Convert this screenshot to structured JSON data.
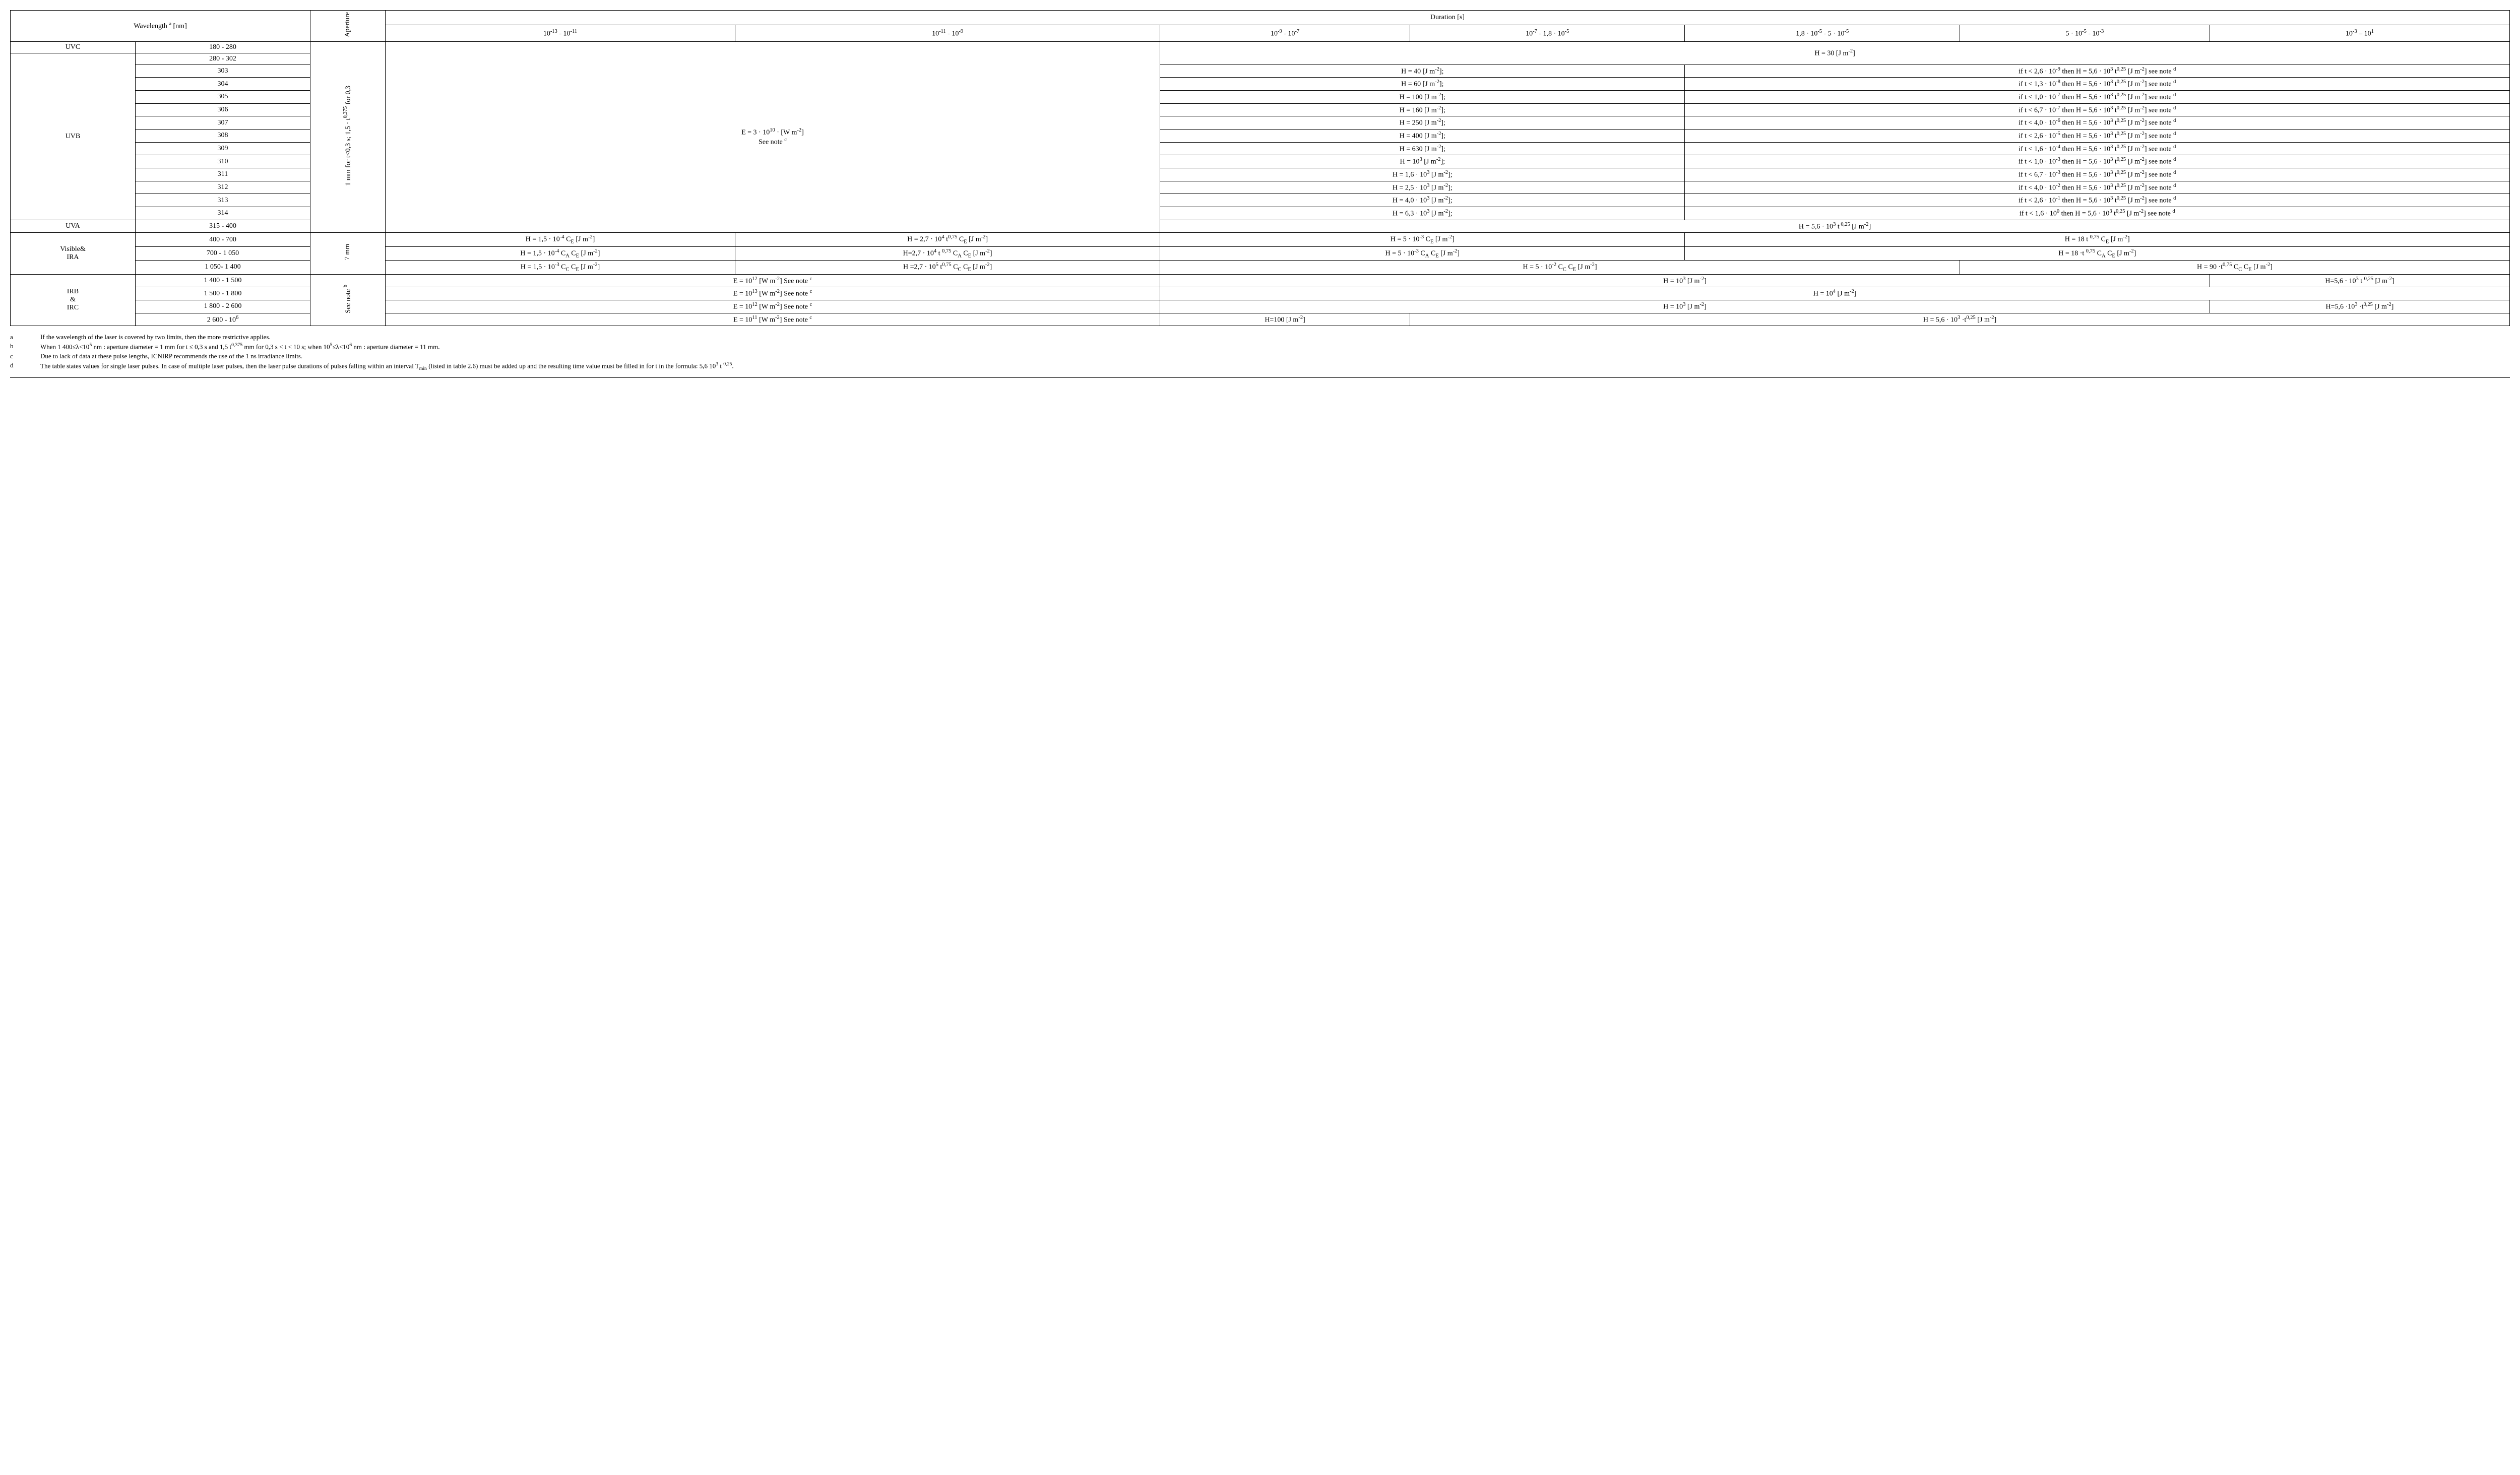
{
  "header": {
    "wavelength": "Wavelength <sup>a</sup> [nm]",
    "aperture": "Aperture",
    "duration": "Duration [s]",
    "cols": [
      "10<sup>-13</sup> - 10<sup>-11</sup>",
      "10<sup>-11</sup> - 10<sup>-9</sup>",
      "10<sup>-9</sup> - 10<sup>-7</sup>",
      "10<sup>-7</sup> - 1,8 · 10<sup>-5</sup>",
      "1,8 · 10<sup>-5</sup> - 5 · 10<sup>-5</sup>",
      "5 · 10<sup>-5</sup> - 10<sup>-3</sup>",
      "10<sup>-3</sup> – 10<sup>1</sup>"
    ]
  },
  "bands": {
    "uvc": "UVC",
    "uvb": "UVB",
    "uva": "UVA",
    "vis": "Visible&<br>IRA",
    "irbc": "IRB<br>&<br>IRC"
  },
  "wl": {
    "uvc": "180 - 280",
    "uvb": [
      "280 - 302",
      "303",
      "304",
      "305",
      "306",
      "307",
      "308",
      "309",
      "310",
      "311",
      "312",
      "313",
      "314"
    ],
    "uva": "315 - 400",
    "vis": [
      "400 - 700",
      "700 - 1 050",
      "1 050- 1 400"
    ],
    "irbc": [
      "1 400 - 1 500",
      "1 500 - 1 800",
      "1 800 - 2 600",
      "2 600 - 10<sup>6</sup>"
    ]
  },
  "aperture": {
    "uv": "1 mm for t<0,3 s; 1,5 · t<sup>0,375</sup> for 0,3<t<10 s",
    "vis": "7 mm",
    "ir": "See note <sup>b</sup>"
  },
  "uv_formula": "E = 3 · 10<sup>10</sup> · [W m<sup>-2</sup>]<br>See note <sup>c</sup>",
  "h30": "H = 30 [J m<sup>-2</sup>]",
  "uvb_rows": [
    {
      "h": "H = 40 [J m<sup>-2</sup>];",
      "cond": "if t < 2,6 · 10<sup>-9</sup> then H = 5,6 · 10<sup>3</sup> t<sup>0,25</sup> [J m<sup>-2</sup>] see note <sup>d</sup>"
    },
    {
      "h": "H = 60 [J m<sup>-2</sup>];",
      "cond": "if t < 1,3 · 10<sup>-8</sup> then H = 5,6 · 10<sup>3</sup> t<sup>0,25</sup> [J m<sup>-2</sup>] see note <sup>d</sup>"
    },
    {
      "h": "H = 100 [J m<sup>-2</sup>];",
      "cond": "if t < 1,0 · 10<sup>-7</sup> then H = 5,6 · 10<sup>3</sup> t<sup>0,25</sup> [J m<sup>-2</sup>] see note <sup>d</sup>"
    },
    {
      "h": "H = 160 [J m<sup>-2</sup>];",
      "cond": "if t < 6,7 · 10<sup>-7</sup> then H = 5,6 · 10<sup>3</sup> t<sup>0,25</sup> [J m<sup>-2</sup>] see note <sup>d</sup>"
    },
    {
      "h": "H = 250 [J m<sup>-2</sup>];",
      "cond": "if t < 4,0 · 10<sup>-6</sup> then H = 5,6 · 10<sup>3</sup> t<sup>0,25</sup> [J m<sup>-2</sup>] see note <sup>d</sup>"
    },
    {
      "h": "H = 400 [J m<sup>-2</sup>];",
      "cond": "if t < 2,6 · 10<sup>-5</sup> then H = 5,6 · 10<sup>3</sup> t<sup>0,25</sup> [J m<sup>-2</sup>] see note <sup>d</sup>"
    },
    {
      "h": "H = 630 [J m<sup>-2</sup>];",
      "cond": "if t < 1,6 · 10<sup>-4</sup> then H = 5,6 · 10<sup>3</sup> t<sup>0,25</sup> [J m<sup>-2</sup>] see note <sup>d</sup>"
    },
    {
      "h": "H = 10<sup>3</sup> [J m<sup>-2</sup>];",
      "cond": "if t < 1,0 · 10<sup>-3</sup> then H = 5,6 · 10<sup>3</sup> t<sup>0,25</sup> [J m<sup>-2</sup>] see note <sup>d</sup>"
    },
    {
      "h": "H = 1,6 · 10<sup>3</sup> [J m<sup>-2</sup>];",
      "cond": "if t < 6,7 · 10<sup>-3</sup> then H = 5,6 · 10<sup>3</sup> t<sup>0,25</sup> [J m<sup>-2</sup>] see note <sup>d</sup>"
    },
    {
      "h": "H = 2,5 · 10<sup>3</sup> [J m<sup>-2</sup>];",
      "cond": "if t < 4,0 · 10<sup>-2</sup> then H = 5,6 · 10<sup>3</sup> t<sup>0,25</sup> [J m<sup>-2</sup>] see note <sup>d</sup>"
    },
    {
      "h": "H = 4,0 · 10<sup>3</sup> [J m<sup>-2</sup>];",
      "cond": "if t < 2,6 · 10<sup>-1</sup> then H = 5,6 · 10<sup>3</sup> t<sup>0,25</sup> [J m<sup>-2</sup>] see note <sup>d</sup>"
    },
    {
      "h": "H = 6,3 · 10<sup>3</sup> [J m<sup>-2</sup>];",
      "cond": "if t < 1,6 · 10<sup>0</sup> then H = 5,6 · 10<sup>3</sup> t<sup>0,25</sup> [J m<sup>-2</sup>] see note <sup>d</sup>"
    }
  ],
  "uva_h": "H = 5,6 · 10<sup>3</sup> t<sup> 0,25</sup> [J m<sup>-2</sup>]",
  "vis_rows": [
    {
      "c1": "H = 1,5 · 10<sup>-4</sup> C<sub>E</sub> [J m<sup>-2</sup>]",
      "c2": "H = 2,7 · 10<sup>4</sup> t<sup>0,75</sup> C<sub>E</sub> [J m<sup>-2</sup>]",
      "c3": "H = 5 · 10<sup>-3</sup> C<sub>E</sub> [J m<sup>-2</sup>]",
      "c4": "H = 18  t <sup>0,75</sup> C<sub>E</sub> [J m<sup>-2</sup>]"
    },
    {
      "c1": "H = 1,5 · 10<sup>-4</sup> C<sub>A</sub> C<sub>E</sub> [J m<sup>-2</sup>]",
      "c2": "H=2,7 · 10<sup>4</sup> t <sup>0,75</sup> C<sub>A</sub> C<sub>E</sub> [J m<sup>-2</sup>]",
      "c3": "H = 5 · 10<sup>-3</sup> C<sub>A</sub> C<sub>E</sub> [J m<sup>-2</sup>]",
      "c4": "H = 18 ·t <sup>0,75</sup> C<sub>A</sub> C<sub>E</sub> [J m<sup>-2</sup>]"
    },
    {
      "c1": "H = 1,5 · 10<sup>-3</sup> C<sub>C</sub> C<sub>E</sub> [J m<sup>-2</sup>]",
      "c2": "H =2,7 · 10<sup>5</sup> t<sup>0,75</sup> C<sub>C</sub> C<sub>E</sub> [J m<sup>-2</sup>]",
      "c3": "H = 5 · 10<sup>-2</sup> C<sub>C</sub> C<sub>E</sub> [J m<sup>-2</sup>]",
      "c4": "H = 90 ·t<sup>0,75</sup> C<sub>C</sub> C<sub>E</sub> [J m<sup>-2</sup>]"
    }
  ],
  "ir_rows": [
    {
      "e": "E = 10<sup>12</sup> [W m<sup>-2</sup>] See note <sup>c</sup>",
      "h1": "H = 10<sup>3</sup> [J m<sup>-2</sup>]",
      "h2": "H=5,6 · 10<sup>3</sup> t <sup>0,25</sup> [J m<sup>-2</sup>]"
    },
    {
      "e": "E = 10<sup>13</sup> [W m<sup>-2</sup>] See note <sup>c</sup>",
      "h1": "H = 10<sup>4</sup> [J m<sup>-2</sup>]"
    },
    {
      "e": "E = 10<sup>12</sup> [W m<sup>-2</sup>] See note <sup>c</sup>",
      "h1": "H = 10<sup>3</sup> [J m<sup>-2</sup>]",
      "h2": "H=5,6 ·10<sup>3</sup> ·t<sup>0,25</sup> [J m<sup>-2</sup>]"
    },
    {
      "e": "E = 10<sup>11</sup> [W m<sup>-2</sup>] See note <sup>c</sup>",
      "h1": "H=100 [J m<sup>-2</sup>]",
      "h2": "H = 5,6 · 10<sup>3</sup> ·t<sup>0,25</sup> [J m<sup>-2</sup>]"
    }
  ],
  "notes": [
    {
      "k": "a",
      "v": "If the wavelength of the laser is covered by two limits, then the more restrictive applies."
    },
    {
      "k": "b",
      "v": "When 1 400≤λ<10<sup>5</sup> nm : aperture diameter = 1 mm for t ≤ 0,3 s and 1,5 t<sup>0,375</sup> mm for 0,3 s < t < 10 s; when 10<sup>5</sup>≤λ<10<sup>6</sup> nm : aperture diameter = 11 mm."
    },
    {
      "k": "c",
      "v": "Due to lack of data at these pulse lengths, ICNIRP recommends the use of the 1 ns irradiance limits."
    },
    {
      "k": "d",
      "v": "The table states values for single laser pulses. In case of multiple laser pulses, then the laser pulse durations of pulses falling within an interval T<sub>min</sub> (listed in table 2.6) must be added up and the resulting time value must be filled in for t in the formula: 5,6 10<sup>3</sup> t <sup>0,25</sup>."
    }
  ]
}
